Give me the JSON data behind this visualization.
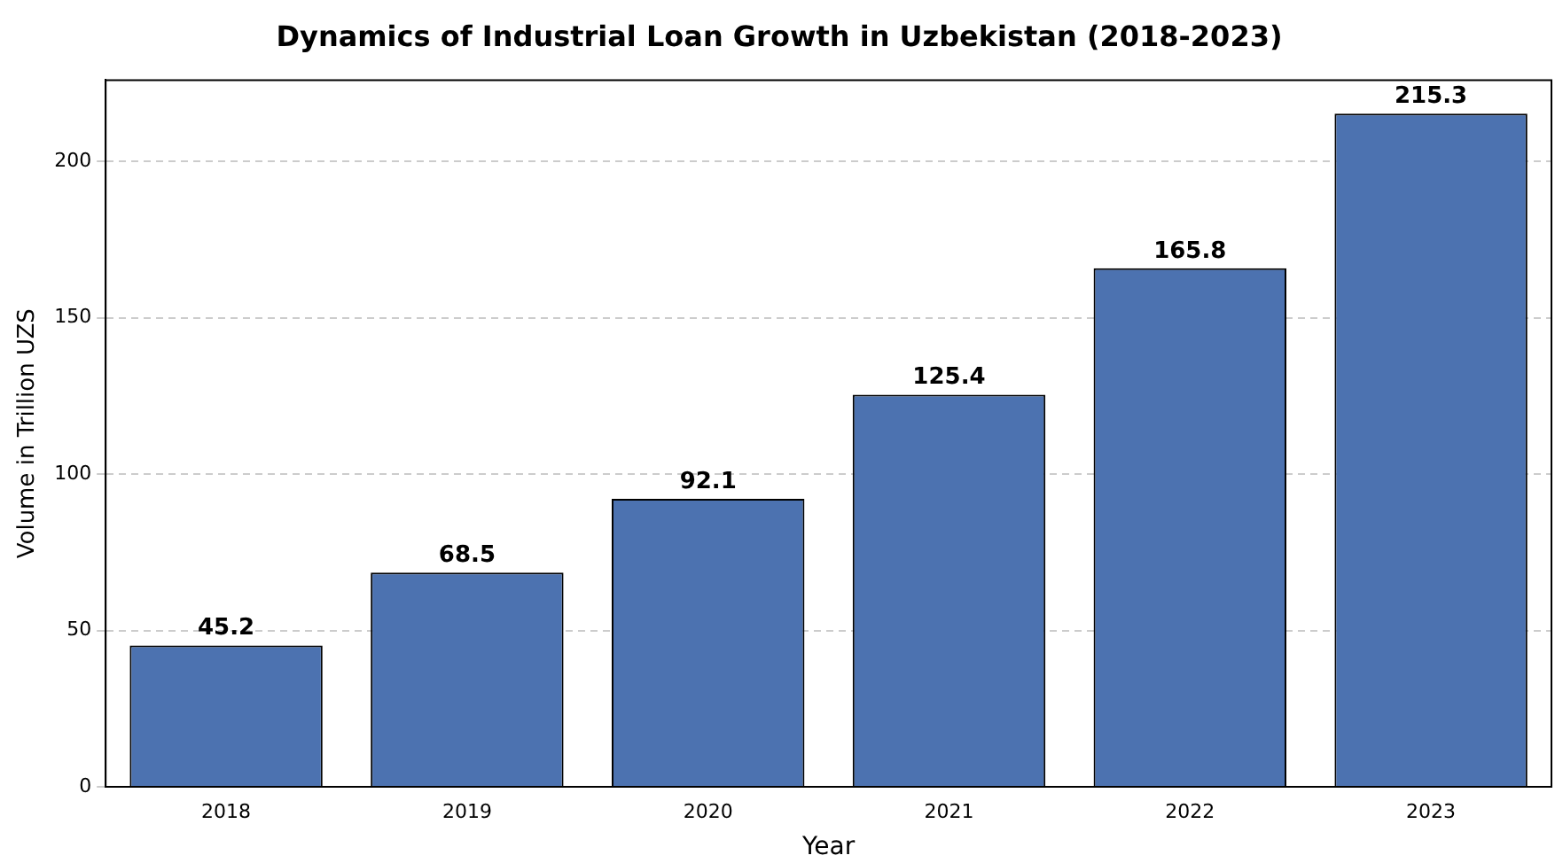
{
  "chart_data": {
    "type": "bar",
    "title": "Dynamics of Industrial Loan Growth in Uzbekistan (2018-2023)",
    "xlabel": "Year",
    "ylabel": "Volume in Trillion UZS",
    "categories": [
      "2018",
      "2019",
      "2020",
      "2021",
      "2022",
      "2023"
    ],
    "values": [
      45.2,
      68.5,
      92.1,
      125.4,
      165.8,
      215.3
    ],
    "color": "#4c72b0",
    "ylim": [
      0,
      226
    ],
    "yticks": [
      0,
      50,
      100,
      150,
      200
    ],
    "grid": "y",
    "data_labels": true
  }
}
